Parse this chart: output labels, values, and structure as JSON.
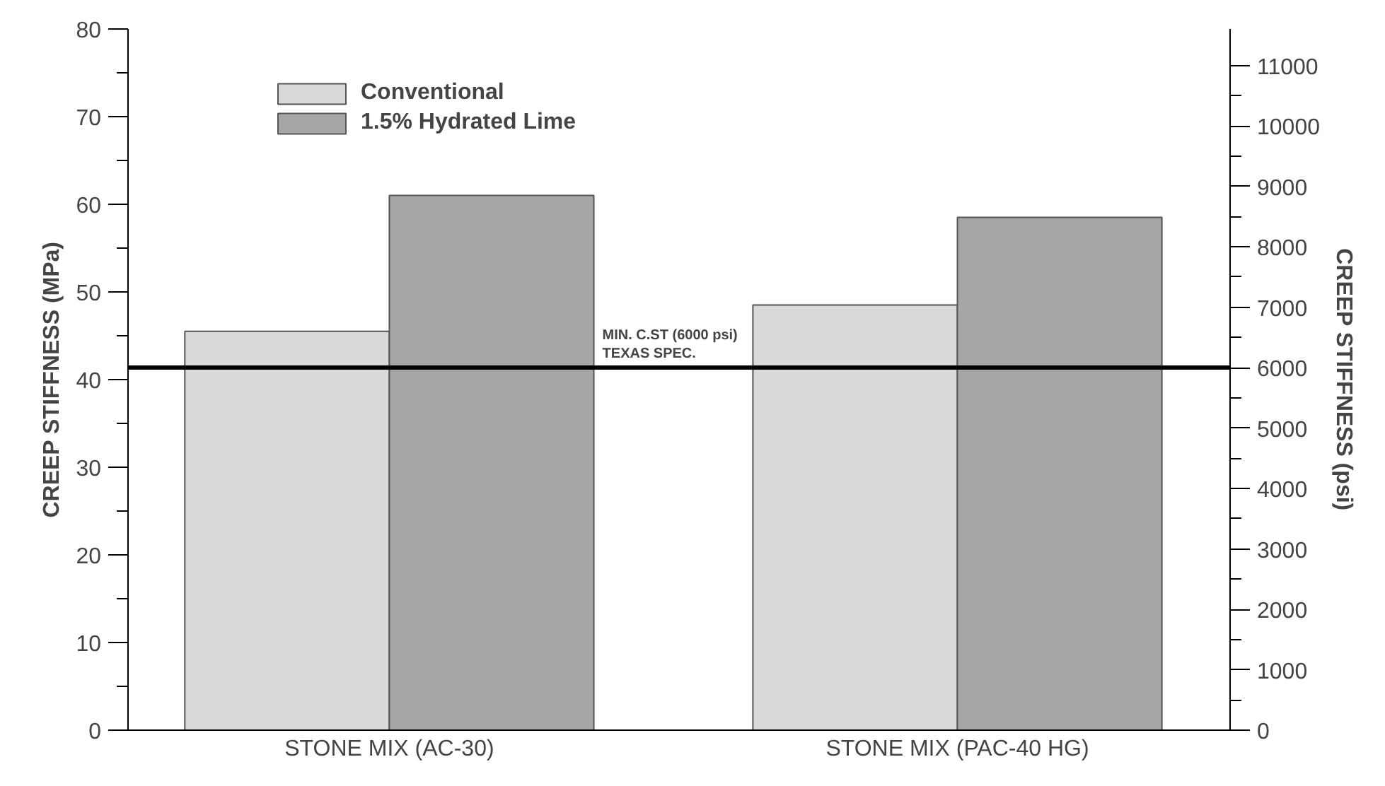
{
  "chart_data": {
    "type": "bar",
    "categories": [
      "STONE MIX (AC-30)",
      "STONE MIX (PAC-40 HG)"
    ],
    "series": [
      {
        "name": "Conventional",
        "color": "#d9d9d9",
        "values": [
          45.5,
          48.5
        ]
      },
      {
        "name": "1.5% Hydrated Lime",
        "color": "#a6a6a6",
        "values": [
          61,
          58.5
        ]
      }
    ],
    "ylabel": "CREEP STIFFNESS (MPa)",
    "y2label": "CREEP STIFFNESS (psi)",
    "ylim": [
      0,
      80
    ],
    "yticks": [
      0,
      10,
      20,
      30,
      40,
      50,
      60,
      70,
      80
    ],
    "y2lim": [
      0,
      11603
    ],
    "y2ticks": [
      0,
      1000,
      2000,
      3000,
      4000,
      5000,
      6000,
      7000,
      8000,
      9000,
      10000,
      11000
    ],
    "ref_lines": [
      {
        "axis": "y2",
        "value": 6000,
        "label": "MIN. C.ST (6000 psi)\nTEXAS SPEC.",
        "color": "#000000"
      }
    ],
    "legend": "top left",
    "grid": false
  }
}
